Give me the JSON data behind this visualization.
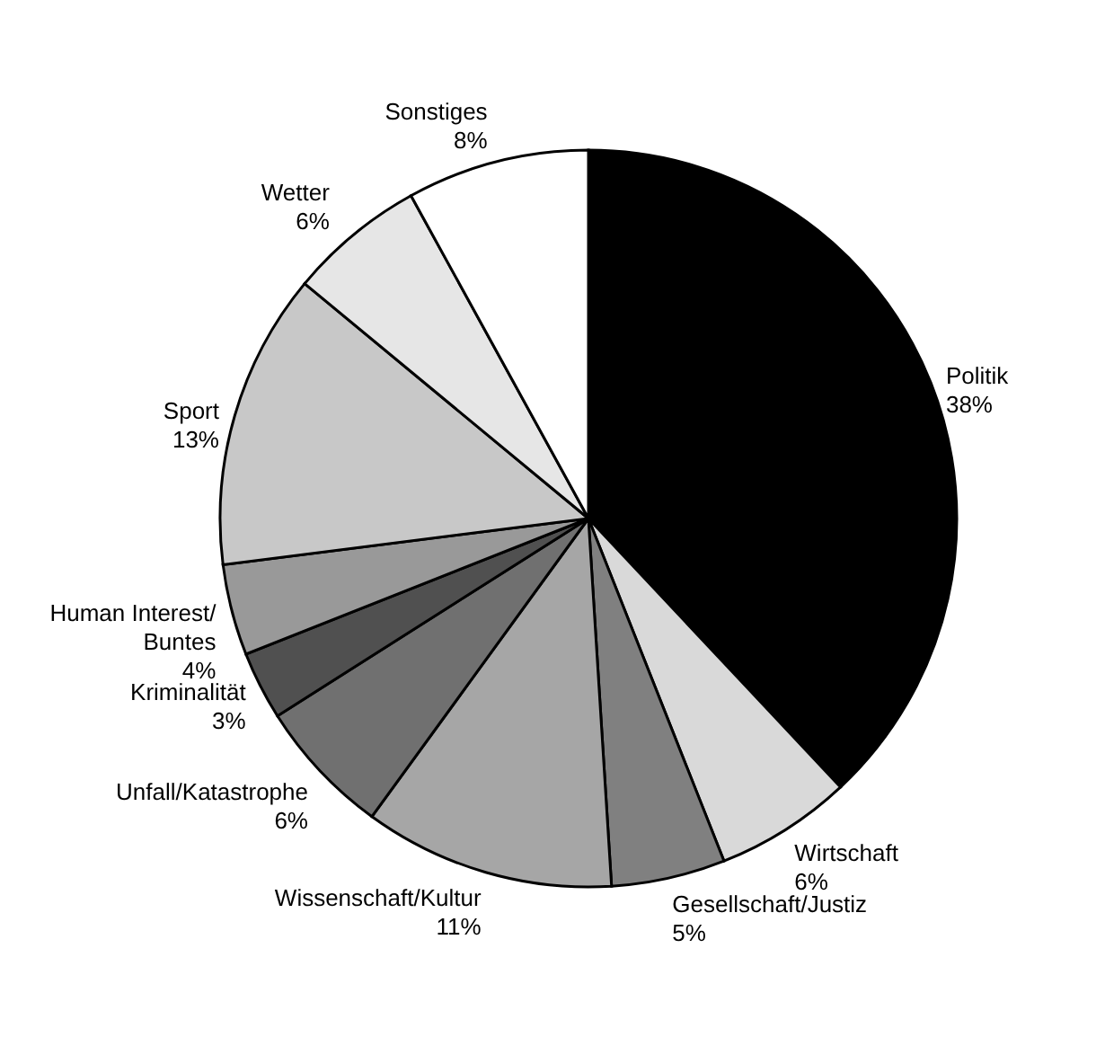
{
  "chart_data": {
    "type": "pie",
    "categories": [
      "Politik",
      "Wirtschaft",
      "Gesellschaft/Justiz",
      "Wissenschaft/Kultur",
      "Unfall/Katastrophe",
      "Kriminalität",
      "Human Interest/\nBuntes",
      "Sport",
      "Wetter",
      "Sonstiges"
    ],
    "values": [
      38,
      6,
      5,
      11,
      6,
      3,
      4,
      13,
      6,
      8
    ],
    "value_labels": [
      "38%",
      "6%",
      "5%",
      "11%",
      "6%",
      "3%",
      "4%",
      "13%",
      "6%",
      "8%"
    ],
    "colors": [
      "#000000",
      "#d9d9d9",
      "#808080",
      "#a6a6a6",
      "#707070",
      "#505050",
      "#999999",
      "#c8c8c8",
      "#e6e6e6",
      "#ffffff"
    ]
  }
}
